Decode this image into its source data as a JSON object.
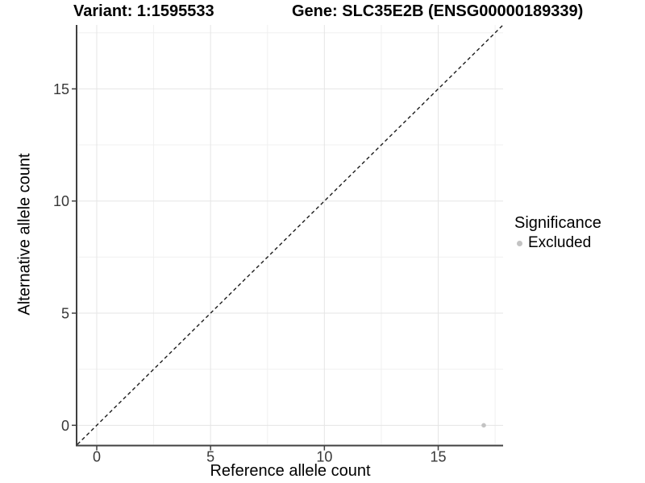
{
  "chart_data": {
    "type": "scatter",
    "title_left": "Variant: 1:1595533",
    "title_right": "Gene: SLC35E2B (ENSG00000189339)",
    "xlabel": "Reference allele count",
    "ylabel": "Alternative allele count",
    "xlim": [
      -0.85,
      17.85
    ],
    "ylim": [
      -0.85,
      17.85
    ],
    "x_ticks": [
      0,
      5,
      10,
      15
    ],
    "y_ticks": [
      0,
      5,
      10,
      15
    ],
    "x_minor_ticks": [
      2.5,
      7.5,
      12.5,
      17.5
    ],
    "y_minor_ticks": [
      2.5,
      7.5,
      12.5,
      17.5
    ],
    "grid": "major and minor, light gray on white",
    "reference_line": {
      "slope": 1,
      "intercept": 0,
      "style": "dashed",
      "color": "#1c1c1c"
    },
    "series": [
      {
        "name": "Excluded",
        "color": "#c3c3c3",
        "points": [
          {
            "x": 17,
            "y": 0
          }
        ]
      }
    ],
    "legend": {
      "title": "Significance",
      "position": "right",
      "items": [
        {
          "label": "Excluded",
          "color": "#c3c3c3"
        }
      ]
    },
    "colors": {
      "background": "#ffffff",
      "grid_major": "#e5e5e5",
      "grid_minor": "#f0f0f0",
      "axis_line": "#404040",
      "tick_mark": "#404040",
      "tick_label": "#383838",
      "point": "#c3c3c3"
    }
  }
}
